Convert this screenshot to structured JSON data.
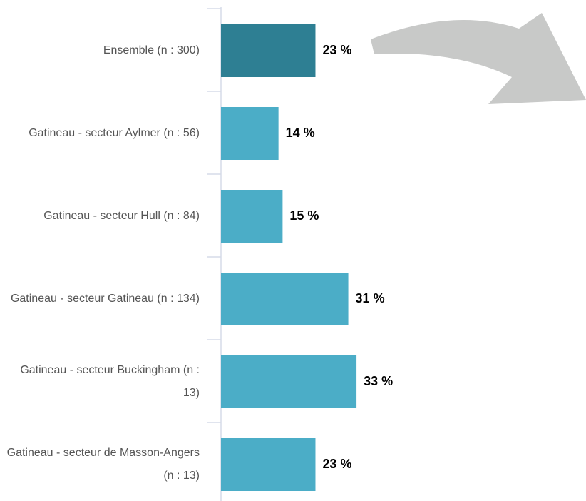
{
  "chart_data": {
    "type": "barh",
    "categories": [
      "Ensemble (n : 300)",
      "Gatineau - secteur Aylmer (n : 56)",
      "Gatineau - secteur Hull (n : 84)",
      "Gatineau - secteur Gatineau (n : 134)",
      "Gatineau - secteur Buckingham (n : 13)",
      "Gatineau - secteur de Masson-Angers (n : 13)"
    ],
    "values": [
      23,
      14,
      15,
      31,
      33,
      23
    ],
    "value_labels": [
      "23 %",
      "14 %",
      "15 %",
      "31 %",
      "33 %",
      "23 %"
    ],
    "colors": [
      "#2e7f93",
      "#4badc7",
      "#4badc7",
      "#4badc7",
      "#4badc7",
      "#4badc7"
    ]
  }
}
